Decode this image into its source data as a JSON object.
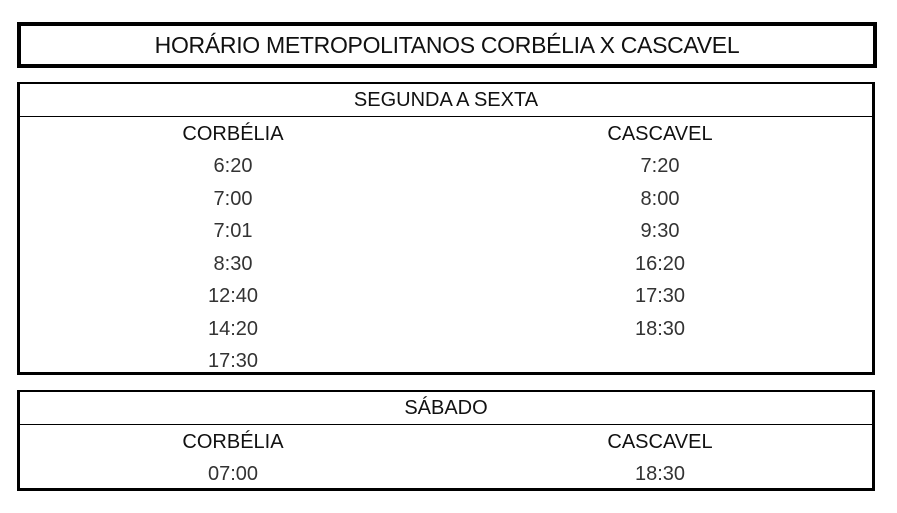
{
  "title": "HORÁRIO METROPOLITANOS CORBÉLIA X CASCAVEL",
  "weekday": {
    "heading": "SEGUNDA A SEXTA",
    "columns": [
      {
        "name": "CORBÉLIA",
        "times": [
          "6:20",
          "7:00",
          "7:01",
          "8:30",
          "12:40",
          "14:20",
          "17:30"
        ]
      },
      {
        "name": "CASCAVEL",
        "times": [
          "7:20",
          "8:00",
          "9:30",
          "16:20",
          "17:30",
          "18:30"
        ]
      }
    ]
  },
  "saturday": {
    "heading": "SÁBADO",
    "columns": [
      {
        "name": "CORBÉLIA",
        "times": [
          "07:00"
        ]
      },
      {
        "name": "CASCAVEL",
        "times": [
          "18:30"
        ]
      }
    ]
  }
}
